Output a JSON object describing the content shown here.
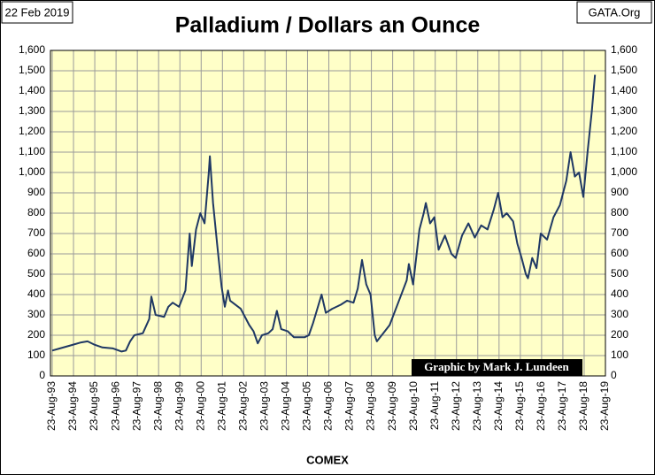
{
  "chart_data": {
    "type": "line",
    "title": "Palladium / Dollars an Ounce",
    "date_note": "22 Feb 2019",
    "source_note": "GATA.Org",
    "credit": "Graphic by Mark J. Lundeen",
    "xlabel": "COMEX",
    "grid": true,
    "plot_color": "#ffffc8",
    "xlim": [
      1993.64,
      2019.64
    ],
    "xticks": [
      {
        "value": 1993.64,
        "label": "23-Aug-93"
      },
      {
        "value": 1994.64,
        "label": "23-Aug-94"
      },
      {
        "value": 1995.64,
        "label": "23-Aug-95"
      },
      {
        "value": 1996.64,
        "label": "23-Aug-96"
      },
      {
        "value": 1997.64,
        "label": "23-Aug-97"
      },
      {
        "value": 1998.64,
        "label": "23-Aug-98"
      },
      {
        "value": 1999.64,
        "label": "23-Aug-99"
      },
      {
        "value": 2000.64,
        "label": "23-Aug-00"
      },
      {
        "value": 2001.64,
        "label": "23-Aug-01"
      },
      {
        "value": 2002.64,
        "label": "23-Aug-02"
      },
      {
        "value": 2003.64,
        "label": "23-Aug-03"
      },
      {
        "value": 2004.64,
        "label": "23-Aug-04"
      },
      {
        "value": 2005.64,
        "label": "23-Aug-05"
      },
      {
        "value": 2006.64,
        "label": "23-Aug-06"
      },
      {
        "value": 2007.64,
        "label": "23-Aug-07"
      },
      {
        "value": 2008.64,
        "label": "23-Aug-08"
      },
      {
        "value": 2009.64,
        "label": "23-Aug-09"
      },
      {
        "value": 2010.64,
        "label": "23-Aug-10"
      },
      {
        "value": 2011.64,
        "label": "23-Aug-11"
      },
      {
        "value": 2012.64,
        "label": "23-Aug-12"
      },
      {
        "value": 2013.64,
        "label": "23-Aug-13"
      },
      {
        "value": 2014.64,
        "label": "23-Aug-14"
      },
      {
        "value": 2015.64,
        "label": "23-Aug-15"
      },
      {
        "value": 2016.64,
        "label": "23-Aug-16"
      },
      {
        "value": 2017.64,
        "label": "23-Aug-17"
      },
      {
        "value": 2018.64,
        "label": "23-Aug-18"
      },
      {
        "value": 2019.64,
        "label": "23-Aug-19"
      }
    ],
    "ylim": [
      0,
      1600
    ],
    "yticks": [
      0,
      100,
      200,
      300,
      400,
      500,
      600,
      700,
      800,
      900,
      {
        "value": 1000,
        "label": "1,000"
      },
      {
        "value": 1100,
        "label": "1,100"
      },
      {
        "value": 1200,
        "label": "1,200"
      },
      {
        "value": 1300,
        "label": "1,300"
      },
      {
        "value": 1400,
        "label": "1,400"
      },
      {
        "value": 1500,
        "label": "1,500"
      },
      {
        "value": 1600,
        "label": "1,600"
      }
    ],
    "x": [
      1993.64,
      1994.0,
      1994.5,
      1995.0,
      1995.3,
      1995.6,
      1996.0,
      1996.5,
      1996.9,
      1997.1,
      1997.3,
      1997.5,
      1997.9,
      1998.2,
      1998.3,
      1998.5,
      1998.9,
      1999.1,
      1999.3,
      1999.6,
      1999.9,
      2000.1,
      2000.2,
      2000.4,
      2000.6,
      2000.8,
      2001.0,
      2001.05,
      2001.2,
      2001.4,
      2001.6,
      2001.75,
      2001.9,
      2002.0,
      2002.5,
      2002.9,
      2003.1,
      2003.3,
      2003.5,
      2003.8,
      2004.0,
      2004.2,
      2004.4,
      2004.7,
      2005.0,
      2005.5,
      2005.7,
      2005.9,
      2006.1,
      2006.3,
      2006.5,
      2006.8,
      2007.2,
      2007.5,
      2007.8,
      2008.0,
      2008.2,
      2008.4,
      2008.6,
      2008.8,
      2008.9,
      2009.2,
      2009.5,
      2009.9,
      2010.3,
      2010.4,
      2010.6,
      2010.9,
      2011.1,
      2011.2,
      2011.4,
      2011.6,
      2011.8,
      2012.1,
      2012.4,
      2012.6,
      2012.9,
      2013.2,
      2013.5,
      2013.8,
      2014.1,
      2014.4,
      2014.6,
      2014.8,
      2015.0,
      2015.3,
      2015.5,
      2015.7,
      2015.9,
      2016.0,
      2016.2,
      2016.4,
      2016.6,
      2016.9,
      2017.2,
      2017.5,
      2017.8,
      2018.0,
      2018.2,
      2018.4,
      2018.6,
      2018.8,
      2019.0,
      2019.15
    ],
    "series": [
      {
        "color": "#1f3864",
        "values": [
          125,
          135,
          150,
          165,
          170,
          155,
          140,
          135,
          120,
          125,
          170,
          200,
          210,
          280,
          390,
          300,
          290,
          340,
          360,
          340,
          420,
          700,
          540,
          720,
          800,
          750,
          1000,
          1080,
          850,
          640,
          440,
          340,
          420,
          370,
          330,
          250,
          220,
          160,
          200,
          210,
          230,
          320,
          230,
          220,
          190,
          190,
          200,
          260,
          330,
          400,
          310,
          330,
          350,
          370,
          360,
          430,
          570,
          450,
          400,
          200,
          170,
          210,
          250,
          360,
          470,
          550,
          450,
          720,
          800,
          850,
          750,
          780,
          620,
          690,
          600,
          580,
          690,
          750,
          680,
          740,
          720,
          820,
          900,
          780,
          800,
          760,
          650,
          580,
          500,
          480,
          580,
          530,
          700,
          670,
          780,
          840,
          960,
          1100,
          980,
          1000,
          880,
          1100,
          1300,
          1480
        ]
      }
    ]
  }
}
